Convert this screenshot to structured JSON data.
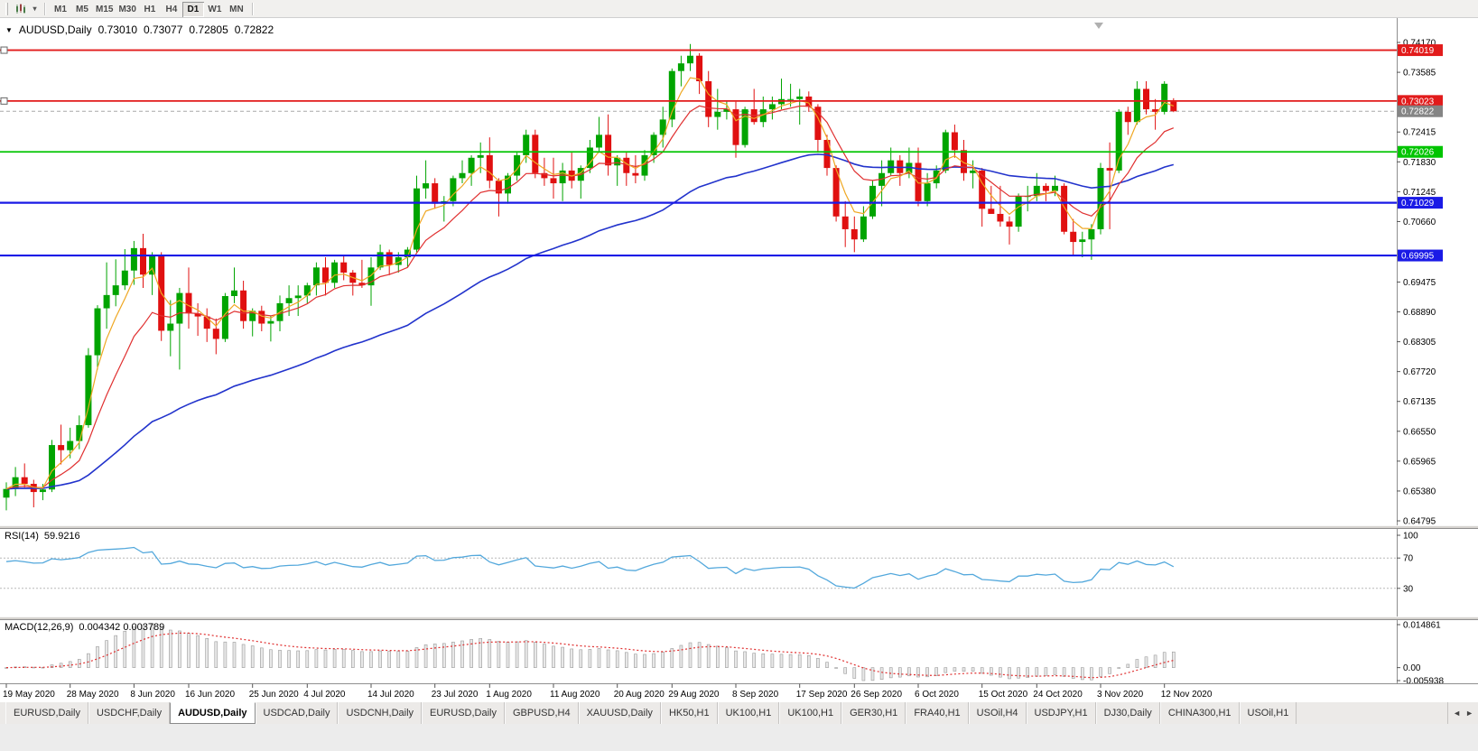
{
  "toolbar": {
    "timeframes": [
      "M1",
      "M5",
      "M15",
      "M30",
      "H1",
      "H4",
      "D1",
      "W1",
      "MN"
    ],
    "active": "D1",
    "caret": "▾"
  },
  "header": {
    "marker": "▼",
    "symbol": "AUDUSD,Daily",
    "open": "0.73010",
    "high": "0.73077",
    "low": "0.72805",
    "close": "0.72822"
  },
  "chart_data": {
    "type": "candlestick",
    "symbol": "AUDUSD",
    "timeframe": "Daily",
    "colors": {
      "up": "#00a400",
      "down": "#e01010",
      "rsi": "#53a8dc",
      "signal": "#e03030",
      "hist_fill": "#e8e8e8",
      "hist_stroke": "#9a9a9a",
      "axis_line": "#8f8f8f"
    },
    "y_axis_labels": [
      "0.74170",
      "0.73585",
      "0.72415",
      "0.71830",
      "0.71245",
      "0.70660",
      "0.69475",
      "0.68890",
      "0.68305",
      "0.67720",
      "0.67135",
      "0.66550",
      "0.65965",
      "0.65380",
      "0.64795"
    ],
    "x_axis_labels": [
      {
        "t": "19 May 2020",
        "i": 0
      },
      {
        "t": "28 May 2020",
        "i": 7
      },
      {
        "t": "8 Jun 2020",
        "i": 14
      },
      {
        "t": "16 Jun 2020",
        "i": 20
      },
      {
        "t": "25 Jun 2020",
        "i": 27
      },
      {
        "t": "4 Jul 2020",
        "i": 33
      },
      {
        "t": "14 Jul 2020",
        "i": 40
      },
      {
        "t": "23 Jul 2020",
        "i": 47
      },
      {
        "t": "1 Aug 2020",
        "i": 53
      },
      {
        "t": "11 Aug 2020",
        "i": 60
      },
      {
        "t": "20 Aug 2020",
        "i": 67
      },
      {
        "t": "29 Aug 2020",
        "i": 73
      },
      {
        "t": "8 Sep 2020",
        "i": 80
      },
      {
        "t": "17 Sep 2020",
        "i": 87
      },
      {
        "t": "26 Sep 2020",
        "i": 93
      },
      {
        "t": "6 Oct 2020",
        "i": 100
      },
      {
        "t": "15 Oct 2020",
        "i": 107
      },
      {
        "t": "24 Oct 2020",
        "i": 113
      },
      {
        "t": "3 Nov 2020",
        "i": 120
      },
      {
        "t": "12 Nov 2020",
        "i": 127
      }
    ],
    "horizontal_lines": [
      {
        "price": 0.74019,
        "label": "0.74019",
        "color": "#e21b1b",
        "width": 1.8,
        "handle": true
      },
      {
        "price": 0.73023,
        "label": "0.73023",
        "color": "#e21b1b",
        "width": 1.8,
        "handle": true
      },
      {
        "price": 0.72026,
        "label": "0.72026",
        "color": "#00c400",
        "width": 1.8,
        "handle": false
      },
      {
        "price": 0.71029,
        "label": "0.71029",
        "color": "#1a1ae6",
        "width": 2.2,
        "handle": false
      },
      {
        "price": 0.69995,
        "label": "0.69995",
        "color": "#1a1ae6",
        "width": 2.2,
        "handle": false
      }
    ],
    "current_price": {
      "value": 0.72822,
      "label": "0.72822",
      "color": "#858585"
    },
    "moving_averages": [
      {
        "name": "slow",
        "period": 45,
        "color": "#2233cc",
        "width": 1.6
      },
      {
        "name": "medium",
        "period": 10,
        "color": "#e03030",
        "width": 1.2
      },
      {
        "name": "fast",
        "period": 4,
        "color": "#efa722",
        "width": 1.2
      }
    ],
    "indicators": {
      "rsi": {
        "label": "RSI(14)",
        "value": "59.9216",
        "period": 14,
        "levels": [
          70,
          30
        ],
        "scale_labels": [
          "100",
          "70",
          "30"
        ]
      },
      "macd": {
        "label": "MACD(12,26,9)",
        "values": "0.004342 0.003789",
        "fast": 12,
        "slow": 26,
        "signal": 9,
        "axis_labels": [
          "0.014861",
          "0.00",
          "-0.005938"
        ]
      }
    },
    "candles": [
      [
        0.6525,
        0.6555,
        0.65,
        0.6542
      ],
      [
        0.6542,
        0.6585,
        0.6528,
        0.6565
      ],
      [
        0.6565,
        0.6592,
        0.6545,
        0.6552
      ],
      [
        0.6552,
        0.656,
        0.6506,
        0.6536
      ],
      [
        0.6536,
        0.6552,
        0.652,
        0.6541
      ],
      [
        0.6541,
        0.6638,
        0.6536,
        0.6628
      ],
      [
        0.6628,
        0.6668,
        0.659,
        0.6618
      ],
      [
        0.6618,
        0.6662,
        0.6602,
        0.6636
      ],
      [
        0.6636,
        0.6686,
        0.662,
        0.6667
      ],
      [
        0.6667,
        0.6818,
        0.6662,
        0.6804
      ],
      [
        0.6804,
        0.6902,
        0.6776,
        0.6896
      ],
      [
        0.6896,
        0.6986,
        0.6856,
        0.6922
      ],
      [
        0.6922,
        0.6992,
        0.69,
        0.6941
      ],
      [
        0.6941,
        0.7012,
        0.6932,
        0.697
      ],
      [
        0.697,
        0.7028,
        0.6942,
        0.7014
      ],
      [
        0.7014,
        0.7042,
        0.6936,
        0.6962
      ],
      [
        0.6962,
        0.7006,
        0.6922,
        0.7
      ],
      [
        0.7,
        0.7006,
        0.6832,
        0.6852
      ],
      [
        0.6852,
        0.6912,
        0.6802,
        0.6866
      ],
      [
        0.6866,
        0.6936,
        0.6776,
        0.6926
      ],
      [
        0.6926,
        0.6976,
        0.6856,
        0.6886
      ],
      [
        0.6886,
        0.6906,
        0.6842,
        0.688
      ],
      [
        0.688,
        0.6896,
        0.683,
        0.6856
      ],
      [
        0.6856,
        0.6876,
        0.6806,
        0.6836
      ],
      [
        0.6836,
        0.6926,
        0.683,
        0.692
      ],
      [
        0.692,
        0.6976,
        0.6906,
        0.6931
      ],
      [
        0.6931,
        0.695,
        0.6856,
        0.6871
      ],
      [
        0.6871,
        0.6896,
        0.6841,
        0.6891
      ],
      [
        0.6891,
        0.6901,
        0.6851,
        0.6866
      ],
      [
        0.6866,
        0.6881,
        0.6831,
        0.6871
      ],
      [
        0.6871,
        0.6921,
        0.6851,
        0.6906
      ],
      [
        0.6906,
        0.6941,
        0.6881,
        0.6916
      ],
      [
        0.6916,
        0.6941,
        0.6881,
        0.6921
      ],
      [
        0.6921,
        0.6946,
        0.6906,
        0.6941
      ],
      [
        0.6941,
        0.6986,
        0.6921,
        0.6976
      ],
      [
        0.6976,
        0.6996,
        0.6921,
        0.6946
      ],
      [
        0.6946,
        0.6991,
        0.6936,
        0.6986
      ],
      [
        0.6986,
        0.7001,
        0.6951,
        0.6966
      ],
      [
        0.6966,
        0.6971,
        0.6921,
        0.6946
      ],
      [
        0.6946,
        0.6991,
        0.6936,
        0.6941
      ],
      [
        0.6941,
        0.6996,
        0.6901,
        0.6976
      ],
      [
        0.6976,
        0.7021,
        0.6971,
        0.7006
      ],
      [
        0.7006,
        0.7011,
        0.6961,
        0.6981
      ],
      [
        0.6981,
        0.7006,
        0.6966,
        0.6996
      ],
      [
        0.6996,
        0.7016,
        0.6976,
        0.7011
      ],
      [
        0.7011,
        0.7156,
        0.7006,
        0.7131
      ],
      [
        0.7131,
        0.7186,
        0.7111,
        0.7141
      ],
      [
        0.7141,
        0.7151,
        0.7091,
        0.7101
      ],
      [
        0.7101,
        0.7116,
        0.7066,
        0.7106
      ],
      [
        0.7106,
        0.7156,
        0.7096,
        0.7151
      ],
      [
        0.7151,
        0.7186,
        0.7141,
        0.7161
      ],
      [
        0.7161,
        0.7196,
        0.7136,
        0.7191
      ],
      [
        0.7191,
        0.7221,
        0.7161,
        0.7196
      ],
      [
        0.7196,
        0.7231,
        0.7131,
        0.7146
      ],
      [
        0.7146,
        0.7151,
        0.7076,
        0.7121
      ],
      [
        0.7121,
        0.7161,
        0.7101,
        0.7156
      ],
      [
        0.7156,
        0.7201,
        0.7146,
        0.7196
      ],
      [
        0.7196,
        0.7246,
        0.7181,
        0.7236
      ],
      [
        0.7236,
        0.7246,
        0.7151,
        0.7161
      ],
      [
        0.7161,
        0.7191,
        0.7136,
        0.7151
      ],
      [
        0.7151,
        0.7191,
        0.7111,
        0.7141
      ],
      [
        0.7141,
        0.7181,
        0.7106,
        0.7166
      ],
      [
        0.7166,
        0.7201,
        0.7131,
        0.7146
      ],
      [
        0.7146,
        0.7176,
        0.7111,
        0.7171
      ],
      [
        0.7171,
        0.7226,
        0.7161,
        0.7211
      ],
      [
        0.7211,
        0.7271,
        0.7201,
        0.7236
      ],
      [
        0.7236,
        0.7276,
        0.7156,
        0.7176
      ],
      [
        0.7176,
        0.7196,
        0.7136,
        0.7191
      ],
      [
        0.7191,
        0.7201,
        0.7136,
        0.7161
      ],
      [
        0.7161,
        0.7196,
        0.7141,
        0.7156
      ],
      [
        0.7156,
        0.7206,
        0.7146,
        0.7196
      ],
      [
        0.7196,
        0.7241,
        0.7181,
        0.7236
      ],
      [
        0.7236,
        0.7291,
        0.7211,
        0.7266
      ],
      [
        0.7266,
        0.7366,
        0.7251,
        0.7361
      ],
      [
        0.7361,
        0.7391,
        0.7331,
        0.7376
      ],
      [
        0.7376,
        0.7414,
        0.7361,
        0.7391
      ],
      [
        0.7391,
        0.7396,
        0.7316,
        0.7341
      ],
      [
        0.7341,
        0.7361,
        0.7251,
        0.7271
      ],
      [
        0.7271,
        0.7326,
        0.7246,
        0.7281
      ],
      [
        0.7281,
        0.7301,
        0.7266,
        0.7286
      ],
      [
        0.7286,
        0.7301,
        0.7191,
        0.7216
      ],
      [
        0.7216,
        0.7291,
        0.7211,
        0.7286
      ],
      [
        0.7286,
        0.7326,
        0.7256,
        0.7261
      ],
      [
        0.7261,
        0.7311,
        0.7251,
        0.7286
      ],
      [
        0.7286,
        0.7311,
        0.7266,
        0.7296
      ],
      [
        0.7296,
        0.7346,
        0.7286,
        0.7306
      ],
      [
        0.7306,
        0.7336,
        0.7291,
        0.7306
      ],
      [
        0.7306,
        0.7326,
        0.7256,
        0.7311
      ],
      [
        0.7311,
        0.7321,
        0.7281,
        0.7291
      ],
      [
        0.7291,
        0.7296,
        0.7201,
        0.7226
      ],
      [
        0.7226,
        0.7236,
        0.7156,
        0.7171
      ],
      [
        0.7171,
        0.7176,
        0.7066,
        0.7076
      ],
      [
        0.7076,
        0.7106,
        0.7016,
        0.7051
      ],
      [
        0.7051,
        0.7076,
        0.7006,
        0.7031
      ],
      [
        0.7031,
        0.7096,
        0.7026,
        0.7076
      ],
      [
        0.7076,
        0.7146,
        0.7071,
        0.7136
      ],
      [
        0.7136,
        0.7186,
        0.7096,
        0.7161
      ],
      [
        0.7161,
        0.7211,
        0.7156,
        0.7186
      ],
      [
        0.7186,
        0.7196,
        0.7136,
        0.7161
      ],
      [
        0.7161,
        0.7211,
        0.7151,
        0.7181
      ],
      [
        0.7181,
        0.7211,
        0.7096,
        0.7106
      ],
      [
        0.7106,
        0.7161,
        0.7096,
        0.7141
      ],
      [
        0.7141,
        0.7176,
        0.7131,
        0.7166
      ],
      [
        0.7166,
        0.7246,
        0.7161,
        0.7241
      ],
      [
        0.7241,
        0.7256,
        0.7191,
        0.7206
      ],
      [
        0.7206,
        0.7226,
        0.7146,
        0.7161
      ],
      [
        0.7161,
        0.7186,
        0.7131,
        0.7166
      ],
      [
        0.7166,
        0.7171,
        0.7056,
        0.7091
      ],
      [
        0.7091,
        0.7136,
        0.7081,
        0.7081
      ],
      [
        0.7081,
        0.7136,
        0.7056,
        0.7066
      ],
      [
        0.7066,
        0.7076,
        0.7021,
        0.7056
      ],
      [
        0.7056,
        0.7121,
        0.7046,
        0.7116
      ],
      [
        0.7116,
        0.7136,
        0.7086,
        0.7116
      ],
      [
        0.7116,
        0.7161,
        0.7106,
        0.7136
      ],
      [
        0.7136,
        0.7141,
        0.7106,
        0.7126
      ],
      [
        0.7126,
        0.7156,
        0.7116,
        0.7136
      ],
      [
        0.7136,
        0.7141,
        0.7041,
        0.7046
      ],
      [
        0.7046,
        0.7071,
        0.7001,
        0.7026
      ],
      [
        0.7026,
        0.7046,
        0.6996,
        0.7031
      ],
      [
        0.7031,
        0.7061,
        0.6991,
        0.7051
      ],
      [
        0.7051,
        0.7181,
        0.7041,
        0.7171
      ],
      [
        0.7171,
        0.7221,
        0.7051,
        0.7166
      ],
      [
        0.7166,
        0.7286,
        0.7161,
        0.7281
      ],
      [
        0.7281,
        0.7291,
        0.7236,
        0.7261
      ],
      [
        0.7261,
        0.7341,
        0.7256,
        0.7326
      ],
      [
        0.7326,
        0.7341,
        0.7276,
        0.7286
      ],
      [
        0.7286,
        0.7306,
        0.7246,
        0.7281
      ],
      [
        0.7281,
        0.7341,
        0.7276,
        0.7336
      ],
      [
        0.7301,
        0.73077,
        0.72805,
        0.72822
      ]
    ]
  },
  "tabs": {
    "items": [
      "EURUSD,Daily",
      "USDCHF,Daily",
      "AUDUSD,Daily",
      "USDCAD,Daily",
      "USDCNH,Daily",
      "EURUSD,Daily",
      "GBPUSD,H4",
      "XAUUSD,Daily",
      "HK50,H1",
      "UK100,H1",
      "UK100,H1",
      "GER30,H1",
      "FRA40,H1",
      "USOil,H4",
      "USDJPY,H1",
      "DJ30,Daily",
      "CHINA300,H1",
      "USOil,H1"
    ],
    "active_index": 2,
    "scroll_left": "◄",
    "scroll_right": "►"
  }
}
